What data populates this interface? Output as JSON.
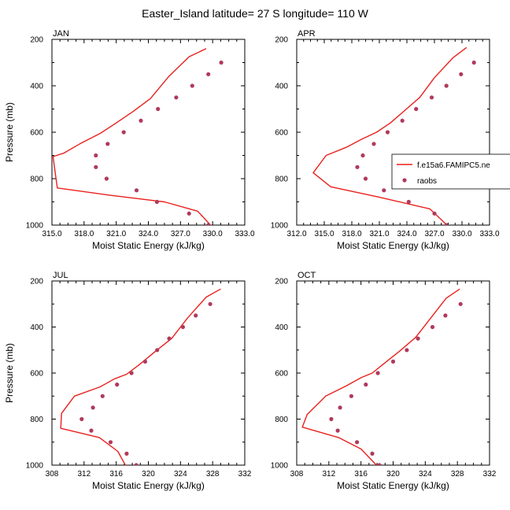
{
  "figure": {
    "title": "Easter_Island  latitude= 27 S longitude= 110 W"
  },
  "legend": {
    "model_label": "f.e15a6.FAMIPC5.ne",
    "obs_label": "raobs"
  },
  "colors": {
    "model": "#e8211e",
    "obs": "#b03a5b"
  },
  "chart_data": [
    {
      "type": "line",
      "panel_title": "JAN",
      "xlabel": "Moist Static Energy (kJ/kg)",
      "ylabel": "Pressure (mb)",
      "xlim": [
        315,
        333
      ],
      "xticks": [
        "315.0",
        "318.0",
        "321.0",
        "324.0",
        "327.0",
        "330.0",
        "333.0"
      ],
      "ylim": [
        200,
        1000
      ],
      "yticks": [
        "200",
        "400",
        "600",
        "800",
        "1000"
      ],
      "y_inverted": true,
      "legend": false,
      "series": [
        {
          "kind": "line",
          "x": [
            329.4,
            327.8,
            325.9,
            324.2,
            322.6,
            321.0,
            319.5,
            317.6,
            316.1,
            315.1,
            315.5,
            320.2,
            325.5,
            328.6,
            330.0
          ],
          "y": [
            240,
            275,
            360,
            455,
            510,
            560,
            605,
            650,
            690,
            705,
            840,
            870,
            900,
            940,
            1010
          ]
        },
        {
          "kind": "scatter",
          "x": [
            330.8,
            329.6,
            328.1,
            326.6,
            324.9,
            323.3,
            321.7,
            320.2,
            319.1,
            319.1,
            320.1,
            322.9,
            324.8,
            327.8,
            329.6
          ],
          "y": [
            300,
            350,
            400,
            450,
            500,
            550,
            600,
            650,
            700,
            750,
            800,
            850,
            900,
            950,
            1000
          ]
        }
      ]
    },
    {
      "type": "line",
      "panel_title": "APR",
      "xlabel": "Moist Static Energy (kJ/kg)",
      "ylabel": "",
      "xlim": [
        312,
        333
      ],
      "xticks": [
        "312.0",
        "315.0",
        "318.0",
        "321.0",
        "324.0",
        "327.0",
        "330.0",
        "333.0"
      ],
      "ylim": [
        200,
        1000
      ],
      "yticks": [
        "200",
        "400",
        "600",
        "800",
        "1000"
      ],
      "y_inverted": true,
      "legend": true,
      "series": [
        {
          "kind": "line",
          "x": [
            330.5,
            329.0,
            327.0,
            325.4,
            323.8,
            322.2,
            320.7,
            319.1,
            317.4,
            315.2,
            313.8,
            315.7,
            321.0,
            326.5,
            328.5
          ],
          "y": [
            235,
            280,
            365,
            450,
            505,
            560,
            600,
            630,
            665,
            700,
            775,
            835,
            880,
            930,
            1005
          ]
        },
        {
          "kind": "scatter",
          "x": [
            331.3,
            329.9,
            328.3,
            326.7,
            325.0,
            323.5,
            321.9,
            320.4,
            319.2,
            318.6,
            319.5,
            321.5,
            324.2,
            327.0,
            328.3
          ],
          "y": [
            300,
            350,
            400,
            450,
            500,
            550,
            600,
            650,
            700,
            750,
            800,
            850,
            900,
            950,
            1000
          ]
        }
      ]
    },
    {
      "type": "line",
      "panel_title": "JUL",
      "xlabel": "Moist Static Energy (kJ/kg)",
      "ylabel": "Pressure (mb)",
      "xlim": [
        308,
        332
      ],
      "xticks": [
        "308",
        "312",
        "316",
        "320",
        "324",
        "328",
        "332"
      ],
      "ylim": [
        200,
        1000
      ],
      "yticks": [
        "200",
        "400",
        "600",
        "800",
        "1000"
      ],
      "y_inverted": true,
      "legend": false,
      "series": [
        {
          "kind": "line",
          "x": [
            329.0,
            327.2,
            324.9,
            322.9,
            320.9,
            319.0,
            317.3,
            315.8,
            314.0,
            310.8,
            309.2,
            309.1,
            313.9,
            316.2,
            317.3
          ],
          "y": [
            235,
            270,
            360,
            450,
            505,
            560,
            605,
            625,
            660,
            700,
            775,
            840,
            880,
            940,
            1010
          ]
        },
        {
          "kind": "scatter",
          "x": [
            327.7,
            325.9,
            324.3,
            322.6,
            321.1,
            319.6,
            317.9,
            316.1,
            314.3,
            313.1,
            311.7,
            312.9,
            315.3,
            317.3,
            318.5
          ],
          "y": [
            300,
            350,
            400,
            450,
            500,
            550,
            600,
            650,
            700,
            750,
            800,
            850,
            900,
            950,
            1000
          ]
        }
      ]
    },
    {
      "type": "line",
      "panel_title": "OCT",
      "xlabel": "Moist Static Energy (kJ/kg)",
      "ylabel": "",
      "xlim": [
        308,
        332
      ],
      "xticks": [
        "308",
        "312",
        "316",
        "320",
        "324",
        "328",
        "332"
      ],
      "ylim": [
        200,
        1000
      ],
      "yticks": [
        "200",
        "400",
        "600",
        "800",
        "1000"
      ],
      "y_inverted": true,
      "legend": false,
      "series": [
        {
          "kind": "line",
          "x": [
            328.3,
            326.6,
            324.7,
            322.8,
            320.8,
            319.0,
            317.4,
            316.0,
            314.2,
            311.6,
            309.3,
            308.7,
            313.2,
            316.0,
            318.2
          ],
          "y": [
            235,
            275,
            360,
            445,
            505,
            555,
            600,
            620,
            655,
            700,
            780,
            835,
            880,
            930,
            1010
          ]
        },
        {
          "kind": "scatter",
          "x": [
            328.4,
            326.5,
            324.9,
            323.1,
            321.7,
            320.0,
            318.1,
            316.6,
            314.8,
            313.4,
            312.3,
            313.1,
            315.5,
            317.4,
            318.3
          ],
          "y": [
            300,
            350,
            400,
            450,
            500,
            550,
            600,
            650,
            700,
            750,
            800,
            850,
            900,
            950,
            1000
          ]
        }
      ]
    }
  ]
}
